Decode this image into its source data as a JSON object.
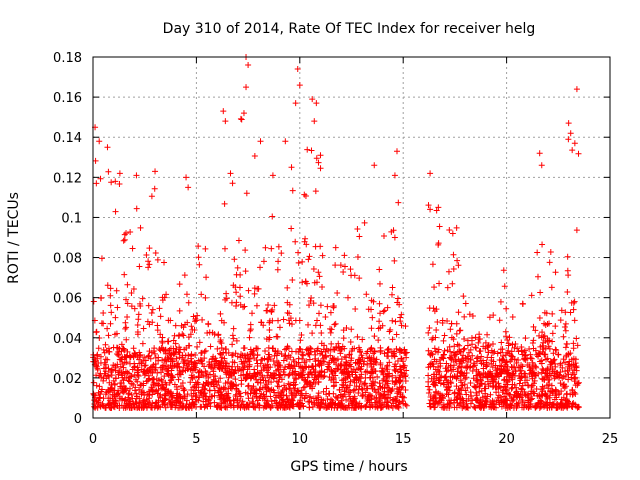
{
  "chart_data": {
    "type": "scatter",
    "title": "Day 310 of 2014, Rate Of TEC Index for receiver helg",
    "xlabel": "GPS time / hours",
    "ylabel": "ROTI / TECUs",
    "xlim": [
      0,
      25
    ],
    "ylim": [
      0,
      0.18
    ],
    "x_ticks": [
      "0",
      "5",
      "10",
      "15",
      "20",
      "25"
    ],
    "y_ticks": [
      "0",
      "0.02",
      "0.04",
      "0.06",
      "0.08",
      "0.1",
      "0.12",
      "0.14",
      "0.16",
      "0.18"
    ],
    "grid": true,
    "marker": "plus",
    "color": "#ff0000",
    "data_gap_hours": [
      15.2,
      16.2
    ],
    "envelope": [
      [
        0.0,
        0.14
      ],
      [
        0.5,
        0.12
      ],
      [
        1.0,
        0.13
      ],
      [
        1.5,
        0.11
      ],
      [
        2.0,
        0.12
      ],
      [
        2.5,
        0.09
      ],
      [
        3.0,
        0.12
      ],
      [
        3.5,
        0.08
      ],
      [
        4.0,
        0.06
      ],
      [
        4.5,
        0.11
      ],
      [
        5.0,
        0.09
      ],
      [
        5.5,
        0.09
      ],
      [
        6.0,
        0.08
      ],
      [
        6.5,
        0.12
      ],
      [
        7.0,
        0.14
      ],
      [
        7.5,
        0.18
      ],
      [
        8.0,
        0.12
      ],
      [
        8.5,
        0.1
      ],
      [
        9.0,
        0.13
      ],
      [
        9.5,
        0.12
      ],
      [
        10.0,
        0.17
      ],
      [
        10.5,
        0.15
      ],
      [
        11.0,
        0.13
      ],
      [
        11.5,
        0.09
      ],
      [
        12.0,
        0.08
      ],
      [
        12.5,
        0.09
      ],
      [
        13.0,
        0.1
      ],
      [
        13.5,
        0.12
      ],
      [
        14.0,
        0.1
      ],
      [
        14.5,
        0.13
      ],
      [
        15.0,
        0.09
      ],
      [
        16.5,
        0.12
      ],
      [
        17.0,
        0.09
      ],
      [
        17.5,
        0.1
      ],
      [
        18.0,
        0.07
      ],
      [
        18.5,
        0.08
      ],
      [
        19.0,
        0.07
      ],
      [
        19.5,
        0.06
      ],
      [
        20.0,
        0.08
      ],
      [
        20.5,
        0.07
      ],
      [
        21.0,
        0.06
      ],
      [
        21.5,
        0.09
      ],
      [
        22.0,
        0.1
      ],
      [
        22.5,
        0.07
      ],
      [
        23.0,
        0.15
      ],
      [
        23.5,
        0.16
      ]
    ],
    "peaks": [
      {
        "x": 0.1,
        "y": 0.145
      },
      {
        "x": 0.3,
        "y": 0.138
      },
      {
        "x": 0.7,
        "y": 0.135
      },
      {
        "x": 1.3,
        "y": 0.122
      },
      {
        "x": 2.1,
        "y": 0.121
      },
      {
        "x": 3.0,
        "y": 0.123
      },
      {
        "x": 4.5,
        "y": 0.12
      },
      {
        "x": 4.6,
        "y": 0.115
      },
      {
        "x": 6.3,
        "y": 0.153
      },
      {
        "x": 6.4,
        "y": 0.148
      },
      {
        "x": 7.4,
        "y": 0.18
      },
      {
        "x": 7.5,
        "y": 0.176
      },
      {
        "x": 7.4,
        "y": 0.165
      },
      {
        "x": 7.3,
        "y": 0.152
      },
      {
        "x": 8.1,
        "y": 0.138
      },
      {
        "x": 8.7,
        "y": 0.121
      },
      {
        "x": 9.3,
        "y": 0.138
      },
      {
        "x": 9.6,
        "y": 0.125
      },
      {
        "x": 9.9,
        "y": 0.174
      },
      {
        "x": 10.0,
        "y": 0.166
      },
      {
        "x": 9.8,
        "y": 0.157
      },
      {
        "x": 10.6,
        "y": 0.159
      },
      {
        "x": 10.8,
        "y": 0.157
      },
      {
        "x": 10.7,
        "y": 0.148
      },
      {
        "x": 11.0,
        "y": 0.131
      },
      {
        "x": 13.6,
        "y": 0.126
      },
      {
        "x": 14.7,
        "y": 0.133
      },
      {
        "x": 14.6,
        "y": 0.121
      },
      {
        "x": 16.3,
        "y": 0.122
      },
      {
        "x": 16.3,
        "y": 0.104
      },
      {
        "x": 16.7,
        "y": 0.105
      },
      {
        "x": 17.4,
        "y": 0.092
      },
      {
        "x": 21.6,
        "y": 0.132
      },
      {
        "x": 21.7,
        "y": 0.126
      },
      {
        "x": 23.0,
        "y": 0.147
      },
      {
        "x": 23.1,
        "y": 0.142
      },
      {
        "x": 23.4,
        "y": 0.164
      },
      {
        "x": 23.3,
        "y": 0.137
      }
    ]
  }
}
